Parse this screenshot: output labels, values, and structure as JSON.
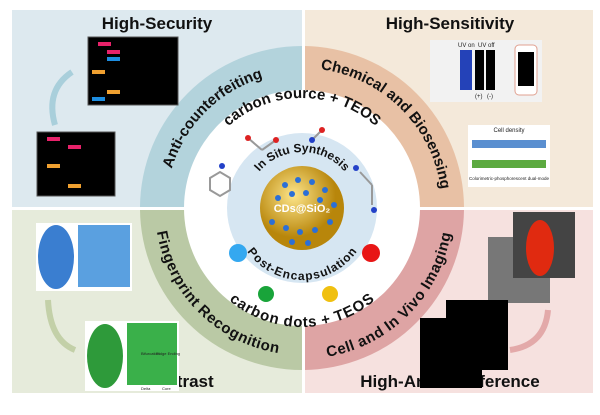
{
  "quadrants": {
    "top_left": {
      "title": "High-Security",
      "ring": "Anti-counterfeiting"
    },
    "top_right": {
      "title": "High-Sensitivity",
      "ring": "Chemical and Biosensing"
    },
    "bottom_left": {
      "title": "High-Contrast",
      "ring": "Fingerprint Recognition"
    },
    "bottom_right": {
      "title": "High-Anti-interference",
      "ring": "Cell and In Vivo Imaging"
    }
  },
  "center": {
    "top_text": "carbon source + TEOS",
    "bottom_text": "carbon dots + TEOS",
    "inner_top": "In Situ Synthesis",
    "inner_bottom": "Post-Encapsulation",
    "core_label": "CDs@SiO₂"
  },
  "sensing": {
    "uv_on": "UV on",
    "uv_off": "UV off",
    "pos": "(+)",
    "neg": "(-)",
    "cell_density": "Cell density",
    "dual_mode": "Colorimetric-phosphorescent dual-mode"
  },
  "fingerprint": {
    "bifurcation": "Bifurcation",
    "ridge_ending": "Ridge Ending",
    "delta": "Delta",
    "core": "Core"
  },
  "colors": {
    "tl_bg": "#dde9ef",
    "tl_ring": "#b3d3dc",
    "tr_bg": "#f4e9da",
    "tr_ring": "#e8c1a5",
    "bl_bg": "#e6ebdb",
    "bl_ring": "#bac9a5",
    "br_bg": "#f6e1df",
    "br_ring": "#dea4a4"
  }
}
